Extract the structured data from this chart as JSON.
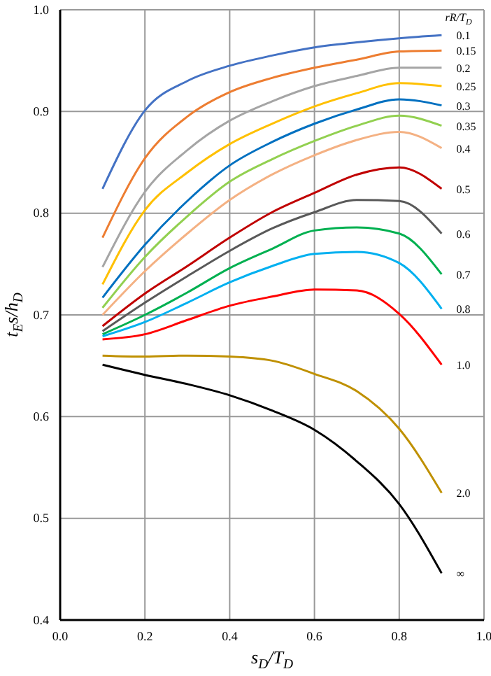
{
  "chart_data": {
    "type": "line",
    "xlabel": "s$_{D}$/T$_{D}$",
    "ylabel": "t$_{E}$s/h$_{D}$",
    "legend_title": "rR/T$_{D}$",
    "legend": "right",
    "grid": true,
    "marker": "none",
    "line_style": "solid",
    "x": [
      0.1,
      0.2,
      0.3,
      0.4,
      0.5,
      0.6,
      0.7,
      0.8,
      0.9
    ],
    "xlim": [
      0,
      1
    ],
    "xticks": [
      {
        "value": 0,
        "label": "0.0"
      },
      {
        "value": 0.2,
        "label": "0.2"
      },
      {
        "value": 0.4,
        "label": "0.4"
      },
      {
        "value": 0.6,
        "label": "0.6"
      },
      {
        "value": 0.8,
        "label": "0.8"
      },
      {
        "value": 1,
        "label": "1.0"
      }
    ],
    "ylim": [
      0.4,
      1
    ],
    "yticks": [
      {
        "value": 0.4,
        "label": "0.4"
      },
      {
        "value": 0.5,
        "label": "0.5"
      },
      {
        "value": 0.6,
        "label": "0.6"
      },
      {
        "value": 0.7,
        "label": "0.7"
      },
      {
        "value": 0.8,
        "label": "0.8"
      },
      {
        "value": 0.9,
        "label": "0.9"
      },
      {
        "value": 1,
        "label": "1.0"
      }
    ],
    "series": [
      {
        "name": "0.1",
        "color": "#4472c4",
        "values": [
          0.824,
          0.901,
          0.93,
          0.945,
          0.955,
          0.963,
          0.968,
          0.972,
          0.975
        ]
      },
      {
        "name": "0.15",
        "color": "#ed7d31",
        "values": [
          0.776,
          0.854,
          0.895,
          0.919,
          0.933,
          0.943,
          0.951,
          0.959,
          0.96
        ]
      },
      {
        "name": "0.2",
        "color": "#a5a5a5",
        "values": [
          0.747,
          0.821,
          0.862,
          0.891,
          0.91,
          0.925,
          0.935,
          0.943,
          0.943
        ]
      },
      {
        "name": "0.25",
        "color": "#ffc000",
        "values": [
          0.73,
          0.803,
          0.84,
          0.868,
          0.888,
          0.905,
          0.918,
          0.928,
          0.925
        ]
      },
      {
        "name": "0.3",
        "color": "#0070c0",
        "values": [
          0.717,
          0.769,
          0.812,
          0.847,
          0.87,
          0.888,
          0.902,
          0.912,
          0.906
        ]
      },
      {
        "name": "0.35",
        "color": "#92d050",
        "values": [
          0.707,
          0.757,
          0.797,
          0.831,
          0.853,
          0.871,
          0.886,
          0.896,
          0.886
        ]
      },
      {
        "name": "0.4",
        "color": "#f4b183",
        "values": [
          0.7,
          0.743,
          0.78,
          0.813,
          0.838,
          0.857,
          0.872,
          0.88,
          0.864
        ]
      },
      {
        "name": "0.5",
        "color": "#c00000",
        "values": [
          0.689,
          0.721,
          0.748,
          0.776,
          0.801,
          0.82,
          0.838,
          0.845,
          0.824
        ]
      },
      {
        "name": "0.6",
        "color": "#595959",
        "values": [
          0.684,
          0.712,
          0.738,
          0.763,
          0.785,
          0.801,
          0.813,
          0.812,
          0.78
        ]
      },
      {
        "name": "0.7",
        "color": "#00b050",
        "values": [
          0.681,
          0.7,
          0.722,
          0.746,
          0.765,
          0.783,
          0.786,
          0.78,
          0.74
        ]
      },
      {
        "name": "0.8",
        "color": "#00b0f0",
        "values": [
          0.679,
          0.693,
          0.712,
          0.732,
          0.748,
          0.76,
          0.762,
          0.751,
          0.706
        ]
      },
      {
        "name": "1.0",
        "color": "#ff0000",
        "values": [
          0.676,
          0.681,
          0.695,
          0.709,
          0.718,
          0.725,
          0.724,
          0.701,
          0.651
        ]
      },
      {
        "name": "2.0",
        "color": "#bf9000",
        "values": [
          0.66,
          0.659,
          0.66,
          0.659,
          0.655,
          0.642,
          0.625,
          0.588,
          0.525
        ]
      },
      {
        "name": "∞",
        "color": "#000000",
        "values": [
          0.651,
          0.641,
          0.632,
          0.621,
          0.606,
          0.587,
          0.556,
          0.514,
          0.446
        ]
      }
    ]
  }
}
